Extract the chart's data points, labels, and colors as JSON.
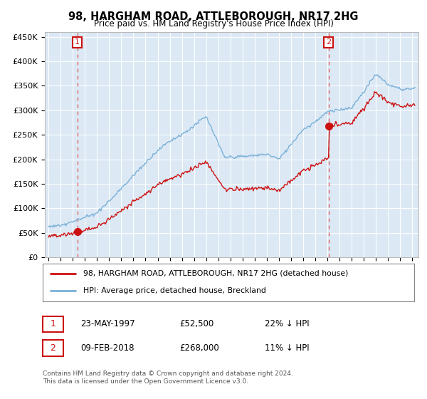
{
  "title": "98, HARGHAM ROAD, ATTLEBOROUGH, NR17 2HG",
  "subtitle": "Price paid vs. HM Land Registry's House Price Index (HPI)",
  "property_label": "98, HARGHAM ROAD, ATTLEBOROUGH, NR17 2HG (detached house)",
  "hpi_label": "HPI: Average price, detached house, Breckland",
  "property_color": "#cc1111",
  "hpi_color": "#7ab0d8",
  "background_color": "#dce9f5",
  "point1_date": "23-MAY-1997",
  "point1_price": 52500,
  "point1_label": "1",
  "point1_hpi_pct": "22% ↓ HPI",
  "point2_date": "09-FEB-2018",
  "point2_price": 268000,
  "point2_label": "2",
  "point2_hpi_pct": "11% ↓ HPI",
  "yticks": [
    0,
    50000,
    100000,
    150000,
    200000,
    250000,
    300000,
    350000,
    400000,
    450000
  ],
  "ytick_labels": [
    "£0",
    "£50K",
    "£100K",
    "£150K",
    "£200K",
    "£250K",
    "£300K",
    "£350K",
    "£400K",
    "£450K"
  ],
  "xmin": 1994.7,
  "xmax": 2025.5,
  "ymin": 0,
  "ymax": 460000,
  "footer": "Contains HM Land Registry data © Crown copyright and database right 2024.\nThis data is licensed under the Open Government Licence v3.0.",
  "point1_year": 1997.38,
  "point2_year": 2018.09
}
